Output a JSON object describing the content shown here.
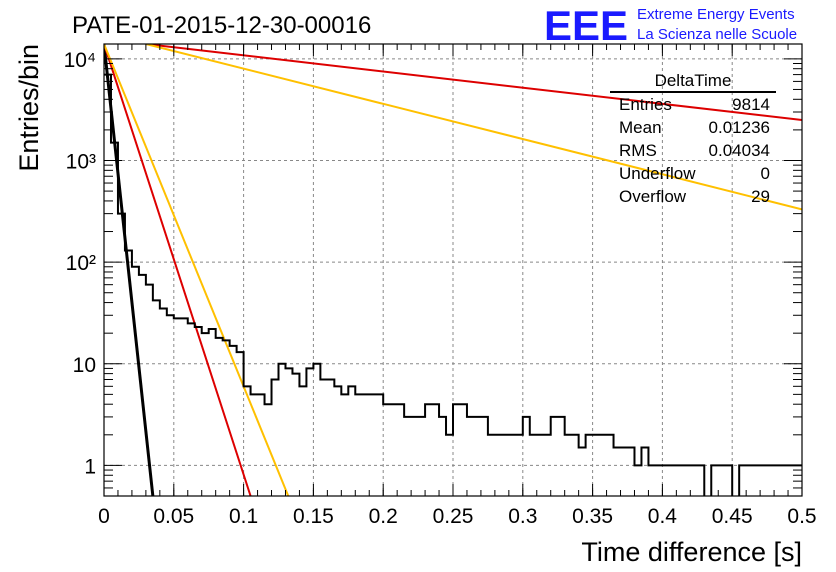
{
  "title": "PATE-01-2015-12-30-00016",
  "logo": {
    "mark": "EEE",
    "line1": "Extreme Energy Events",
    "line2": "La Scienza nelle Scuole",
    "color": "#1a1aff"
  },
  "chart_data": {
    "type": "histogram",
    "title": "PATE-01-2015-12-30-00016",
    "xlabel": "Time difference [s]",
    "ylabel": "Entries/bin",
    "xlim": [
      0,
      0.5
    ],
    "ylim": [
      0.5,
      14000
    ],
    "yscale": "log",
    "grid": true,
    "x_ticks": [
      0,
      0.05,
      0.1,
      0.15,
      0.2,
      0.25,
      0.3,
      0.35,
      0.4,
      0.45,
      0.5
    ],
    "x_tick_labels": [
      "0",
      "0.05",
      "0.1",
      "0.15",
      "0.2",
      "0.25",
      "0.3",
      "0.35",
      "0.4",
      "0.45",
      "0.5"
    ],
    "y_ticks": [
      1,
      10,
      100,
      1000,
      10000
    ],
    "y_tick_labels": [
      "1",
      "10",
      "10²",
      "10³",
      "10⁴"
    ],
    "histogram": {
      "name": "DeltaTime",
      "bin_width": 0.005,
      "bin_start": 0,
      "color": "#000000",
      "counts": [
        7000,
        1500,
        300,
        130,
        90,
        75,
        60,
        42,
        35,
        30,
        28,
        28,
        25,
        23,
        20,
        22,
        18,
        17,
        15,
        13,
        6,
        5,
        5,
        4,
        7,
        10,
        9,
        8,
        6,
        9,
        10,
        7,
        7,
        6,
        5,
        6,
        5,
        5,
        5,
        5,
        4,
        4,
        4,
        3,
        3,
        3,
        4,
        4,
        3,
        2,
        4,
        4,
        3,
        3,
        3,
        2,
        2,
        2,
        2,
        2,
        3,
        2,
        2,
        2,
        3,
        3,
        2,
        2,
        1.5,
        2,
        2,
        2,
        2,
        1.5,
        1.5,
        1.5,
        1,
        1.5,
        1,
        1,
        1,
        1,
        1,
        1,
        1,
        1,
        0,
        1,
        1,
        1,
        0,
        1,
        1,
        1,
        1,
        1,
        1,
        1,
        1,
        1
      ]
    },
    "fit_curves": [
      {
        "color": "#000000",
        "points": [
          [
            0,
            14000
          ],
          [
            0.035,
            0.5
          ]
        ]
      },
      {
        "color": "#dd0000",
        "points": [
          [
            0,
            14000
          ],
          [
            0.105,
            0.5
          ]
        ]
      },
      {
        "color": "#ffc000",
        "points": [
          [
            0,
            14000
          ],
          [
            0.132,
            0.5
          ]
        ]
      },
      {
        "color": "#dd0000",
        "points": [
          [
            0.03,
            14000
          ],
          [
            0.5,
            2500
          ]
        ]
      },
      {
        "color": "#ffc000",
        "points": [
          [
            0.03,
            14000
          ],
          [
            0.5,
            330
          ]
        ]
      }
    ],
    "stats_box": {
      "title": "DeltaTime",
      "rows": [
        {
          "label": "Entries",
          "value": "9814"
        },
        {
          "label": "Mean",
          "value": "0.01236"
        },
        {
          "label": "RMS",
          "value": "0.04034"
        },
        {
          "label": "Underflow",
          "value": "0"
        },
        {
          "label": "Overflow",
          "value": "29"
        }
      ]
    }
  }
}
